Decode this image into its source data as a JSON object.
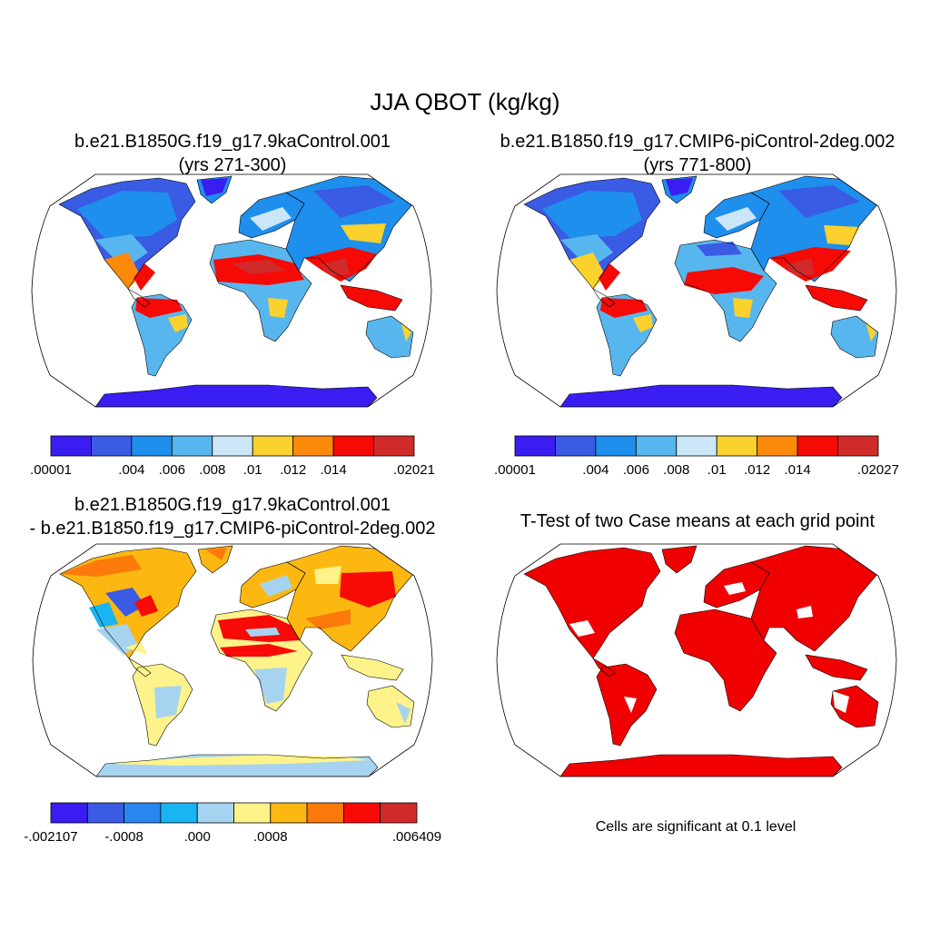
{
  "figure": {
    "title": "JJA QBOT (kg/kg)",
    "footnote": "Cells are significant at 0.1 level"
  },
  "panels": [
    {
      "id": "case1",
      "title_line1": "b.e21.B1850G.f19_g17.9kaControl.001",
      "title_line2": "(yrs 271-300)",
      "colorbar": {
        "colors": [
          "#3a1df0",
          "#3a5be4",
          "#1e8fed",
          "#58b6ee",
          "#cae6f7",
          "#fbd12e",
          "#fb8a0b",
          "#f50a06",
          "#d12a2a"
        ],
        "labels": [
          ".00001",
          "",
          ".004",
          ".006",
          ".008",
          ".01",
          ".012",
          ".014",
          "",
          ".02021"
        ]
      }
    },
    {
      "id": "case2",
      "title_line1": "b.e21.B1850.f19_g17.CMIP6-piControl-2deg.002",
      "title_line2": "(yrs 771-800)",
      "colorbar": {
        "colors": [
          "#3a1df0",
          "#3a5be4",
          "#1e8fed",
          "#58b6ee",
          "#cae6f7",
          "#fbd12e",
          "#fb8a0b",
          "#f50a06",
          "#d12a2a"
        ],
        "labels": [
          ".00001",
          "",
          ".004",
          ".006",
          ".008",
          ".01",
          ".012",
          ".014",
          "",
          ".02027"
        ]
      }
    },
    {
      "id": "diff",
      "title_line1": "b.e21.B1850G.f19_g17.9kaControl.001",
      "title_line2": "- b.e21.B1850.f19_g17.CMIP6-piControl-2deg.002",
      "colorbar": {
        "colors": [
          "#3a1df0",
          "#3a5be4",
          "#2a86ef",
          "#19b4f2",
          "#a6d4f0",
          "#fdf38a",
          "#fcb811",
          "#fb7a0b",
          "#f80a06",
          "#d12a2a"
        ],
        "labels": [
          "-.002107",
          "",
          "-.0008",
          "",
          ".000",
          "",
          ".0008",
          "",
          "",
          "",
          ".006409"
        ]
      }
    },
    {
      "id": "ttest",
      "title_line1": "T-Test of two Case means at each grid point",
      "fill_color": "#f00000"
    }
  ]
}
